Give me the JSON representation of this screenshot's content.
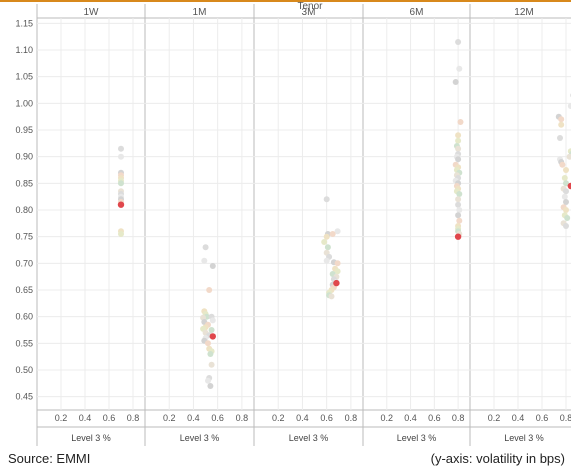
{
  "header": {
    "facet_title": "Tenor"
  },
  "footer": {
    "source": "Source: EMMI",
    "axis_note": "(y-axis: volatility in bps)"
  },
  "colors": {
    "top_rule": "#d8891c",
    "highlight": "#e0474c",
    "panel_border": "#bbbbbb",
    "gridline": "#ececec",
    "dot_palette": [
      "#dcdcdc",
      "#e8e8e8",
      "#d3d3d3",
      "#f2d9c9",
      "#efe2c4",
      "#e6e9c9",
      "#cfe2cf",
      "#e9e2d6"
    ]
  },
  "chart_data": {
    "type": "scatter",
    "facet_label": "Tenor",
    "xlabel": "Level 3 %",
    "ylabel": "",
    "xlim": [
      0,
      0.9
    ],
    "ylim": [
      0.425,
      1.16
    ],
    "xticks": [
      "0.2",
      "0.4",
      "0.6",
      "0.8"
    ],
    "yticks": [
      "1.15",
      "1.10",
      "1.05",
      "1.00",
      "0.95",
      "0.90",
      "0.85",
      "0.80",
      "0.75",
      "0.70",
      "0.65",
      "0.60",
      "0.55",
      "0.50",
      "0.45"
    ],
    "panels": [
      {
        "tenor": "1W",
        "x": 0.7,
        "highlight": {
          "x": 0.7,
          "y": 0.81
        },
        "y": [
          0.915,
          0.9,
          0.87,
          0.865,
          0.86,
          0.855,
          0.85,
          0.835,
          0.83,
          0.825,
          0.82,
          0.815,
          0.76,
          0.755
        ]
      },
      {
        "tenor": "1M",
        "x": 0.5,
        "highlight": {
          "x": 0.56,
          "y": 0.563
        },
        "points": [
          {
            "x": 0.5,
            "y": 0.73
          },
          {
            "x": 0.49,
            "y": 0.705
          },
          {
            "x": 0.56,
            "y": 0.695
          },
          {
            "x": 0.53,
            "y": 0.65
          },
          {
            "x": 0.49,
            "y": 0.61
          },
          {
            "x": 0.5,
            "y": 0.605
          },
          {
            "x": 0.51,
            "y": 0.6
          },
          {
            "x": 0.48,
            "y": 0.598
          },
          {
            "x": 0.55,
            "y": 0.6
          },
          {
            "x": 0.56,
            "y": 0.593
          },
          {
            "x": 0.49,
            "y": 0.59
          },
          {
            "x": 0.52,
            "y": 0.585
          },
          {
            "x": 0.5,
            "y": 0.58
          },
          {
            "x": 0.48,
            "y": 0.577
          },
          {
            "x": 0.55,
            "y": 0.575
          },
          {
            "x": 0.5,
            "y": 0.57
          },
          {
            "x": 0.53,
            "y": 0.565
          },
          {
            "x": 0.5,
            "y": 0.56
          },
          {
            "x": 0.49,
            "y": 0.555
          },
          {
            "x": 0.52,
            "y": 0.55
          },
          {
            "x": 0.53,
            "y": 0.54
          },
          {
            "x": 0.55,
            "y": 0.535
          },
          {
            "x": 0.54,
            "y": 0.53
          },
          {
            "x": 0.55,
            "y": 0.51
          },
          {
            "x": 0.53,
            "y": 0.485
          },
          {
            "x": 0.52,
            "y": 0.48
          },
          {
            "x": 0.54,
            "y": 0.47
          }
        ]
      },
      {
        "tenor": "3M",
        "x": 0.62,
        "highlight": {
          "x": 0.68,
          "y": 0.663
        },
        "points": [
          {
            "x": 0.6,
            "y": 0.82
          },
          {
            "x": 0.69,
            "y": 0.76
          },
          {
            "x": 0.61,
            "y": 0.755
          },
          {
            "x": 0.65,
            "y": 0.755
          },
          {
            "x": 0.6,
            "y": 0.75
          },
          {
            "x": 0.58,
            "y": 0.74
          },
          {
            "x": 0.61,
            "y": 0.73
          },
          {
            "x": 0.6,
            "y": 0.72
          },
          {
            "x": 0.62,
            "y": 0.712
          },
          {
            "x": 0.6,
            "y": 0.705
          },
          {
            "x": 0.66,
            "y": 0.702
          },
          {
            "x": 0.69,
            "y": 0.7
          },
          {
            "x": 0.67,
            "y": 0.69
          },
          {
            "x": 0.69,
            "y": 0.685
          },
          {
            "x": 0.65,
            "y": 0.68
          },
          {
            "x": 0.68,
            "y": 0.675
          },
          {
            "x": 0.66,
            "y": 0.67
          },
          {
            "x": 0.68,
            "y": 0.665
          },
          {
            "x": 0.65,
            "y": 0.66
          },
          {
            "x": 0.66,
            "y": 0.655
          },
          {
            "x": 0.64,
            "y": 0.65
          },
          {
            "x": 0.62,
            "y": 0.645
          },
          {
            "x": 0.62,
            "y": 0.64
          },
          {
            "x": 0.64,
            "y": 0.638
          }
        ]
      },
      {
        "tenor": "6M",
        "x": 0.8,
        "highlight": {
          "x": 0.8,
          "y": 0.75
        },
        "points": [
          {
            "x": 0.8,
            "y": 1.115
          },
          {
            "x": 0.81,
            "y": 1.065
          },
          {
            "x": 0.78,
            "y": 1.04
          },
          {
            "x": 0.82,
            "y": 0.965
          },
          {
            "x": 0.8,
            "y": 0.94
          },
          {
            "x": 0.8,
            "y": 0.93
          },
          {
            "x": 0.79,
            "y": 0.92
          },
          {
            "x": 0.8,
            "y": 0.915
          },
          {
            "x": 0.8,
            "y": 0.905
          },
          {
            "x": 0.79,
            "y": 0.9
          },
          {
            "x": 0.8,
            "y": 0.895
          },
          {
            "x": 0.78,
            "y": 0.885
          },
          {
            "x": 0.8,
            "y": 0.88
          },
          {
            "x": 0.79,
            "y": 0.875
          },
          {
            "x": 0.81,
            "y": 0.87
          },
          {
            "x": 0.79,
            "y": 0.865
          },
          {
            "x": 0.8,
            "y": 0.86
          },
          {
            "x": 0.78,
            "y": 0.855
          },
          {
            "x": 0.8,
            "y": 0.85
          },
          {
            "x": 0.79,
            "y": 0.845
          },
          {
            "x": 0.8,
            "y": 0.84
          },
          {
            "x": 0.79,
            "y": 0.835
          },
          {
            "x": 0.81,
            "y": 0.83
          },
          {
            "x": 0.8,
            "y": 0.82
          },
          {
            "x": 0.8,
            "y": 0.81
          },
          {
            "x": 0.81,
            "y": 0.8
          },
          {
            "x": 0.8,
            "y": 0.79
          },
          {
            "x": 0.81,
            "y": 0.78
          },
          {
            "x": 0.8,
            "y": 0.77
          },
          {
            "x": 0.8,
            "y": 0.765
          },
          {
            "x": 0.8,
            "y": 0.76
          },
          {
            "x": 0.81,
            "y": 0.755
          }
        ]
      },
      {
        "tenor": "12M",
        "x": 0.78,
        "highlight": {
          "x": 0.84,
          "y": 0.845
        },
        "points": [
          {
            "x": 0.86,
            "y": 1.015
          },
          {
            "x": 0.84,
            "y": 0.995
          },
          {
            "x": 0.74,
            "y": 0.975
          },
          {
            "x": 0.76,
            "y": 0.97
          },
          {
            "x": 0.76,
            "y": 0.96
          },
          {
            "x": 0.84,
            "y": 0.91
          },
          {
            "x": 0.85,
            "y": 0.905
          },
          {
            "x": 0.83,
            "y": 0.9
          },
          {
            "x": 0.75,
            "y": 0.935
          },
          {
            "x": 0.75,
            "y": 0.895
          },
          {
            "x": 0.76,
            "y": 0.89
          },
          {
            "x": 0.77,
            "y": 0.885
          },
          {
            "x": 0.8,
            "y": 0.875
          },
          {
            "x": 0.79,
            "y": 0.86
          },
          {
            "x": 0.8,
            "y": 0.85
          },
          {
            "x": 0.78,
            "y": 0.84
          },
          {
            "x": 0.8,
            "y": 0.835
          },
          {
            "x": 0.79,
            "y": 0.825
          },
          {
            "x": 0.8,
            "y": 0.815
          },
          {
            "x": 0.78,
            "y": 0.805
          },
          {
            "x": 0.8,
            "y": 0.8
          },
          {
            "x": 0.79,
            "y": 0.79
          },
          {
            "x": 0.81,
            "y": 0.785
          },
          {
            "x": 0.78,
            "y": 0.775
          },
          {
            "x": 0.8,
            "y": 0.77
          }
        ]
      }
    ]
  }
}
